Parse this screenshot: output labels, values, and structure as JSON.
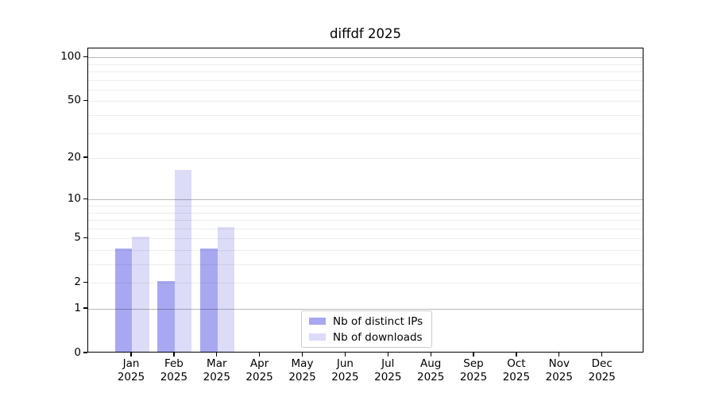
{
  "chart_data": {
    "type": "bar",
    "title": "diffdf 2025",
    "categories": [
      "Jan",
      "Feb",
      "Mar",
      "Apr",
      "May",
      "Jun",
      "Jul",
      "Aug",
      "Sep",
      "Oct",
      "Nov",
      "Dec"
    ],
    "x_year_label": "2025",
    "series": [
      {
        "name": "Nb of distinct IPs",
        "color": "#a8a8f2",
        "values": [
          4,
          2,
          4,
          0,
          0,
          0,
          0,
          0,
          0,
          0,
          0,
          0
        ]
      },
      {
        "name": "Nb of downloads",
        "color": "#dcdcf8",
        "values": [
          5,
          16,
          6,
          0,
          0,
          0,
          0,
          0,
          0,
          0,
          0,
          0
        ]
      }
    ],
    "y_scale": "log1p",
    "y_ticks": [
      0,
      1,
      2,
      5,
      10,
      20,
      50,
      100
    ],
    "y_gridlines_major": [
      1,
      10,
      100
    ],
    "y_gridlines_minor": [
      2,
      3,
      4,
      5,
      6,
      7,
      8,
      9,
      20,
      30,
      40,
      50,
      60,
      70,
      80,
      90
    ],
    "ylim": [
      0,
      115
    ],
    "grid": "on",
    "legend_position": "inside-bottom-center"
  }
}
